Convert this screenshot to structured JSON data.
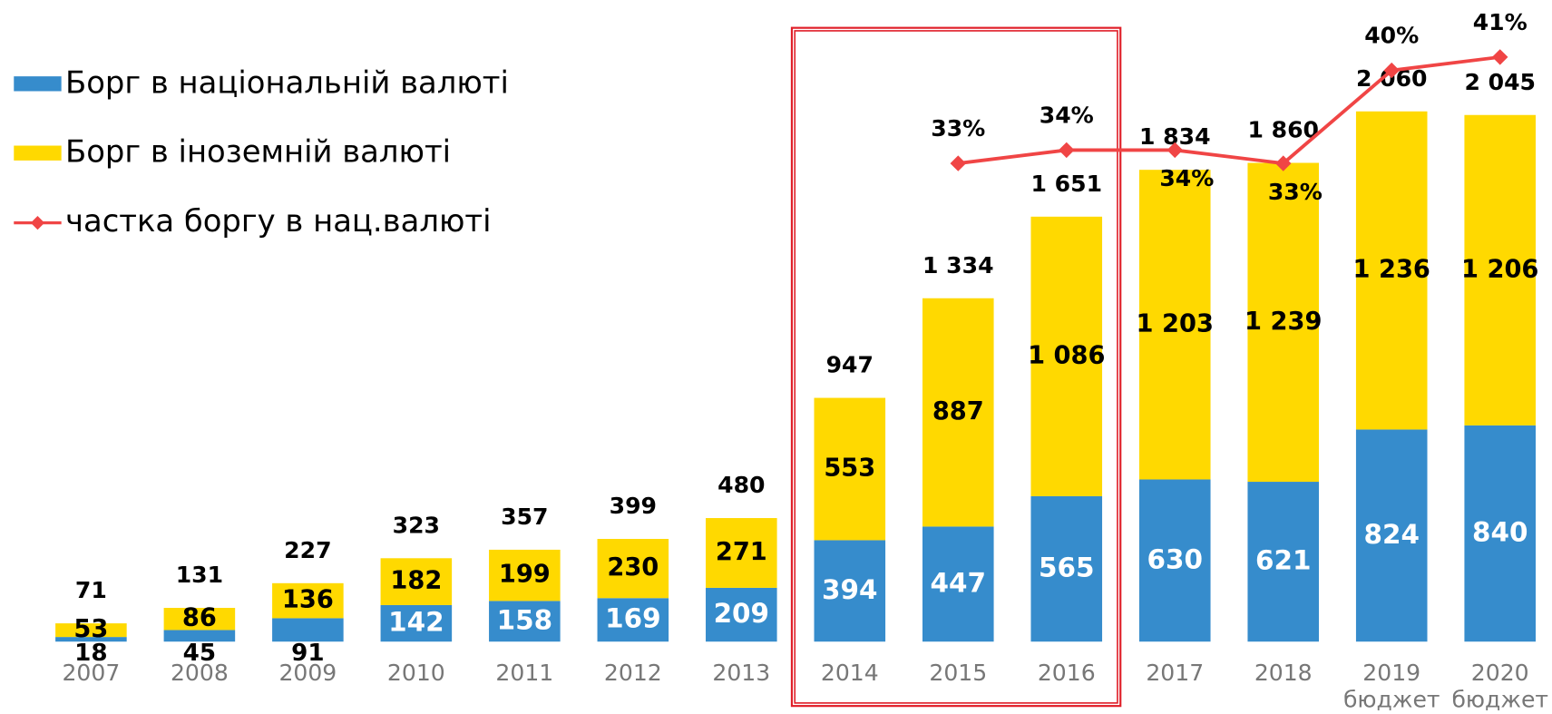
{
  "chart_data": {
    "type": "stacked_bar_line",
    "categories": [
      "2007",
      "2008",
      "2009",
      "2010",
      "2011",
      "2012",
      "2013",
      "2014",
      "2015",
      "2016",
      "2017",
      "2018",
      "2019",
      "2020"
    ],
    "category_sublabels": [
      null,
      null,
      null,
      null,
      null,
      null,
      null,
      null,
      null,
      null,
      null,
      null,
      "бюджет",
      "бюджет"
    ],
    "ylim": [
      0,
      2400
    ],
    "y2lim": [
      -3,
      43.5
    ],
    "series": [
      {
        "name": "Борг в національній валюті",
        "color": "#368ccc",
        "values": [
          18,
          45,
          91,
          142,
          158,
          169,
          209,
          394,
          447,
          565,
          630,
          621,
          824,
          840
        ]
      },
      {
        "name": "Борг в іноземній валюті",
        "color": "#ffd900",
        "values": [
          53,
          86,
          136,
          182,
          199,
          230,
          271,
          553,
          887,
          1086,
          1203,
          1239,
          1236,
          1206
        ],
        "value_labels": [
          "53",
          "86",
          "136",
          "182",
          "199",
          "230",
          "271",
          "553",
          "887",
          "1 086",
          "1 203",
          "1 239",
          "1 236",
          "1 206"
        ]
      },
      {
        "name": "частка боргу в нац.валюті",
        "color": "#f04545",
        "axis": "y2",
        "values": [
          null,
          null,
          null,
          null,
          null,
          null,
          null,
          null,
          33,
          34,
          34,
          33,
          40,
          41
        ],
        "value_labels": [
          null,
          null,
          null,
          null,
          null,
          null,
          null,
          null,
          "33%",
          "34%",
          "34%",
          "33%",
          "40%",
          "41%"
        ]
      }
    ],
    "totals": {
      "values": [
        71,
        131,
        227,
        323,
        357,
        399,
        480,
        947,
        1334,
        1651,
        1834,
        1860,
        2060,
        2045
      ],
      "value_labels": [
        "71",
        "131",
        "227",
        "323",
        "357",
        "399",
        "480",
        "947",
        "1 334",
        "1 651",
        "1 834",
        "1 860",
        "2 060",
        "2 045"
      ]
    }
  }
}
